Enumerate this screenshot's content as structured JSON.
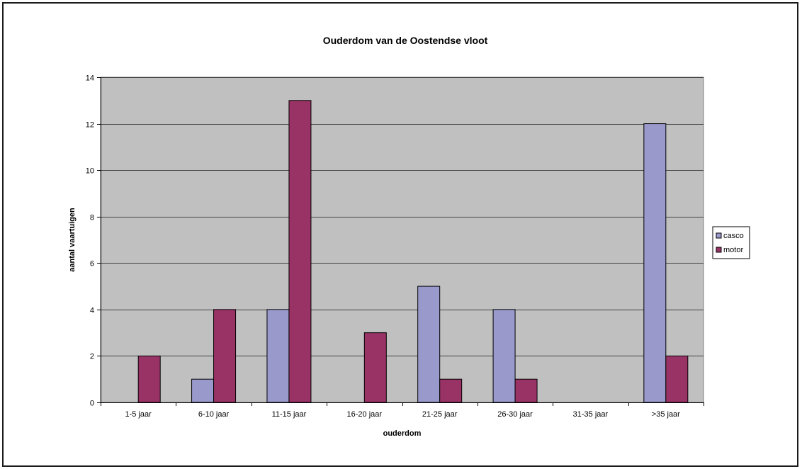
{
  "chart_data": {
    "type": "bar",
    "title": "Ouderdom van de Oostendse vloot",
    "xlabel": "ouderdom",
    "ylabel": "aantal vaartuigen",
    "categories": [
      "1-5 jaar",
      "6-10 jaar",
      "11-15 jaar",
      "16-20 jaar",
      "21-25 jaar",
      "26-30 jaar",
      "31-35 jaar",
      ">35 jaar"
    ],
    "series": [
      {
        "name": "casco",
        "color": "#9999cc",
        "values": [
          0,
          1,
          4,
          0,
          5,
          4,
          0,
          12
        ]
      },
      {
        "name": "motor",
        "color": "#993366",
        "values": [
          2,
          4,
          13,
          3,
          1,
          1,
          0,
          2
        ]
      }
    ],
    "ylim": [
      0,
      14
    ],
    "yticks": [
      0,
      2,
      4,
      6,
      8,
      10,
      12,
      14
    ],
    "grid": true,
    "plot_background": "#c0c0c0",
    "legend_position": "right"
  }
}
